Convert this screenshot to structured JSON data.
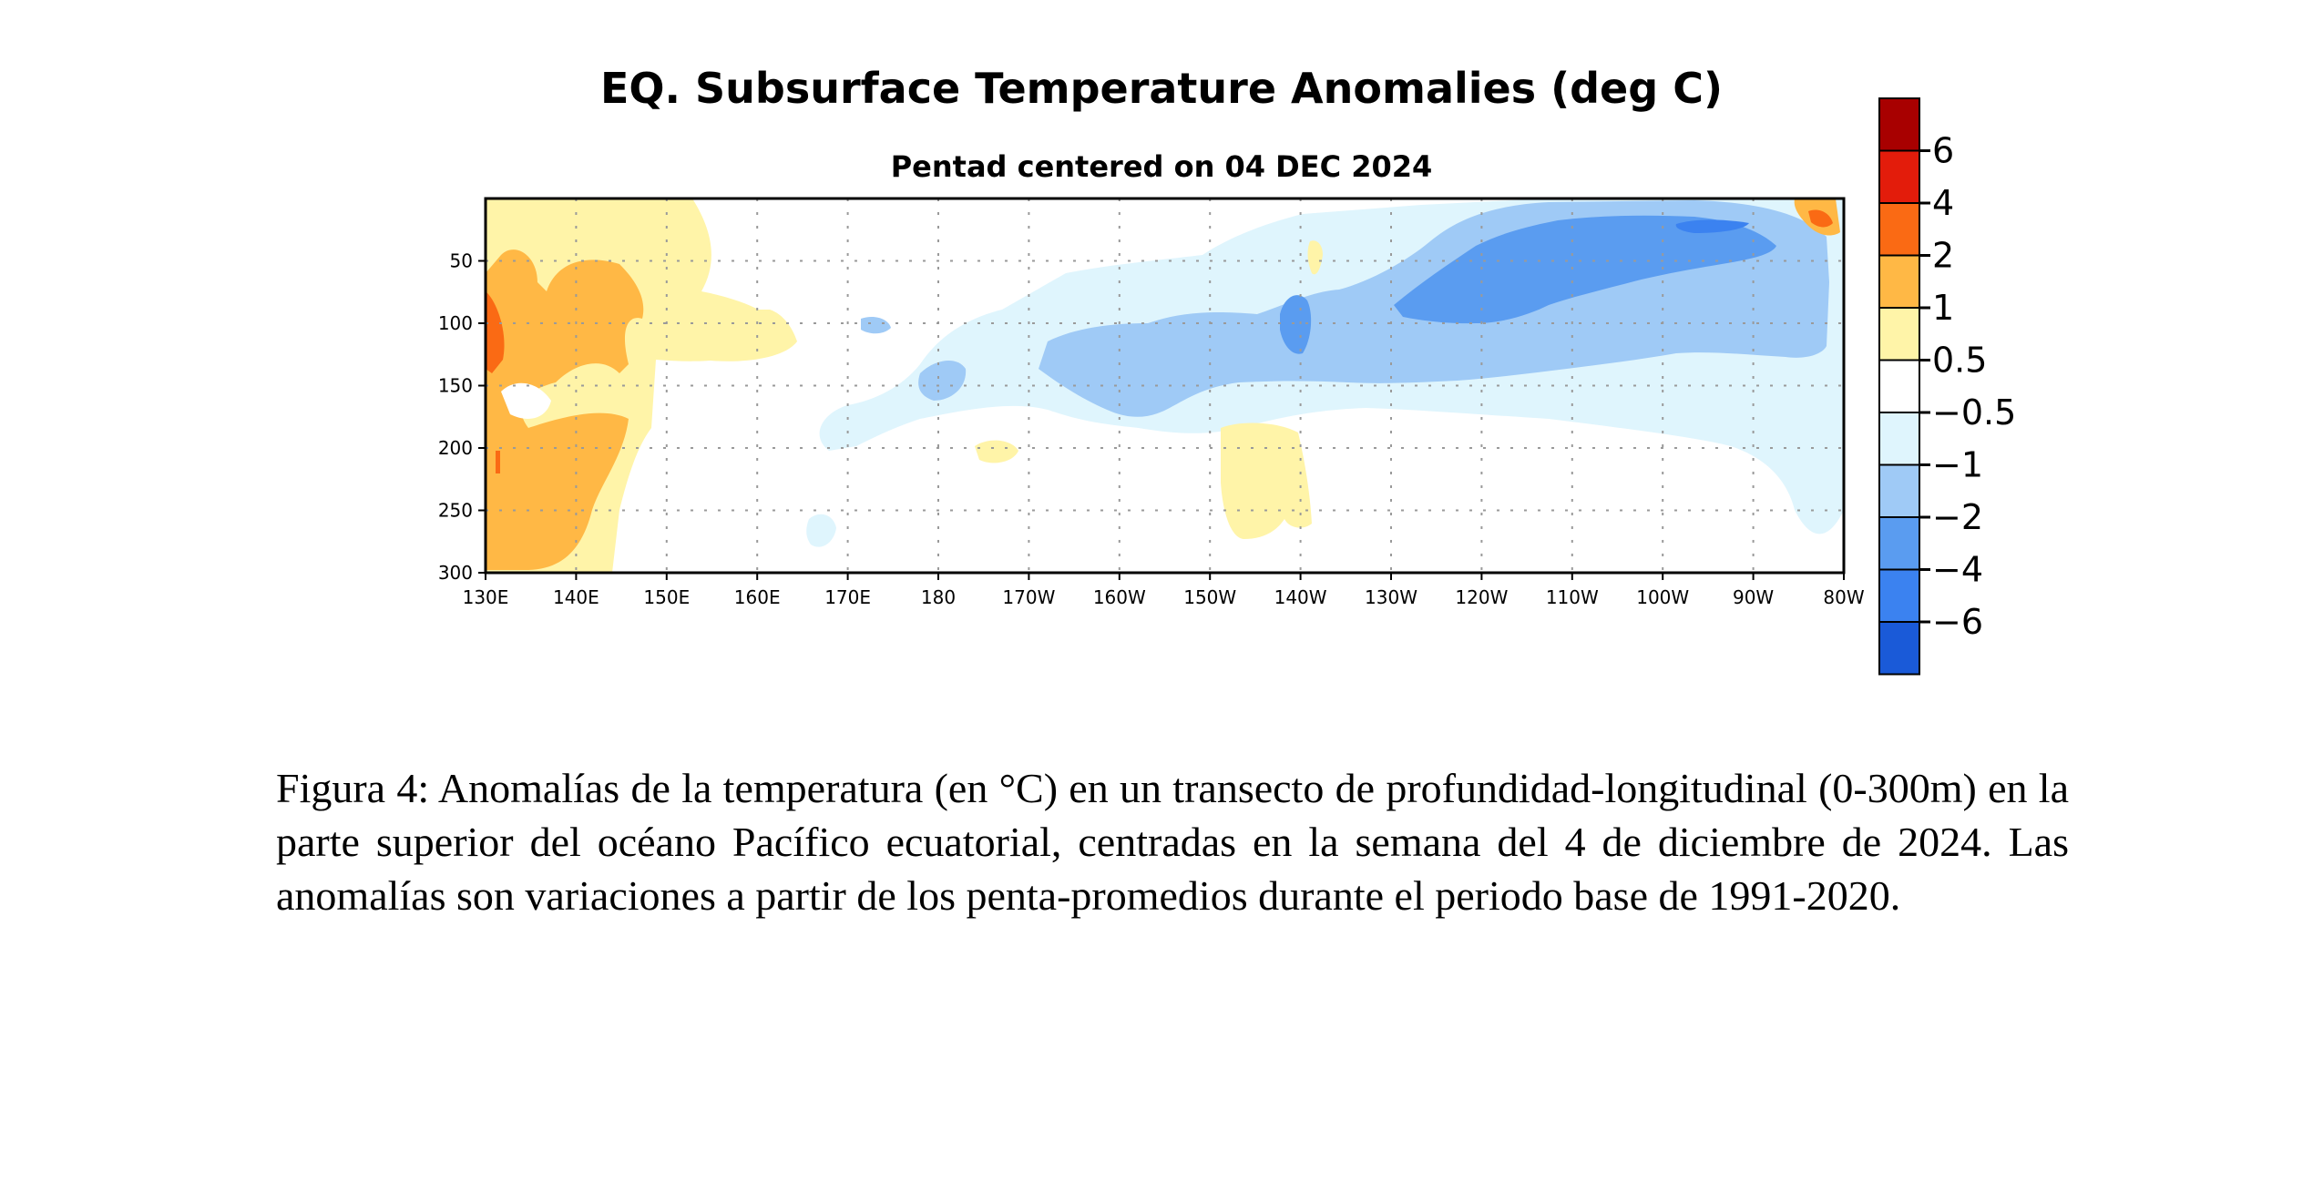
{
  "chart_data": {
    "type": "heatmap",
    "title": "EQ. Subsurface Temperature Anomalies (deg C)",
    "subtitle": "Pentad centered on 04 DEC 2024",
    "xlabel": "",
    "ylabel": "",
    "x_ticks": [
      "130E",
      "140E",
      "150E",
      "160E",
      "170E",
      "180",
      "170W",
      "160W",
      "150W",
      "140W",
      "130W",
      "120W",
      "110W",
      "100W",
      "90W",
      "80W"
    ],
    "y_ticks": [
      "50",
      "100",
      "150",
      "200",
      "250",
      "300"
    ],
    "xlim": [
      130,
      280
    ],
    "ylim": [
      300,
      0
    ],
    "grid": true,
    "legend_position": "right",
    "colorbar": {
      "labels": [
        "6",
        "4",
        "2",
        "1",
        "0.5",
        "−0.5",
        "−1",
        "−2",
        "−4",
        "−6"
      ],
      "levels": [
        -6,
        -4,
        -2,
        -1,
        -0.5,
        0.5,
        1,
        2,
        4,
        6
      ],
      "colors": [
        "#1a5ad8",
        "#3b82f0",
        "#5a9cf0",
        "#9fcaf6",
        "#dff5fd",
        "#ffffff",
        "#fff4a8",
        "#ffb845",
        "#fa6a14",
        "#e31c0b",
        "#a80000"
      ]
    },
    "regions": [
      {
        "label": "western warm anomaly (130E-150E, 0-300m)",
        "lon": [
          130,
          150
        ],
        "depth": [
          0,
          300
        ],
        "value": 1.5,
        "peak": 2.5
      },
      {
        "label": "shallow warm anomaly (150E-160E, 0-110m)",
        "lon": [
          150,
          160
        ],
        "depth": [
          0,
          110
        ],
        "value": 0.7
      },
      {
        "label": "cool anomaly band (170W-90W, 80-160m)",
        "lon": [
          190,
          270
        ],
        "depth": [
          80,
          160
        ],
        "value": -1.5
      },
      {
        "label": "strongest cool anomaly (125W-95W, 20-100m)",
        "lon": [
          235,
          265
        ],
        "depth": [
          20,
          100
        ],
        "value": -2.5
      },
      {
        "label": "deep warm patch (150W-140W, 200-260m)",
        "lon": [
          210,
          220
        ],
        "depth": [
          200,
          260
        ],
        "value": 0.7
      },
      {
        "label": "eastern surface warm patch (85W-80W, 0-30m)",
        "lon": [
          275,
          280
        ],
        "depth": [
          0,
          30
        ],
        "value": 3.0
      }
    ]
  },
  "caption": "Figura 4: Anomalías de la temperatura (en °C) en un transecto de profundidad-longitudinal (0-300m) en la parte superior del océano Pacífico ecuatorial, centradas en la semana del 4 de diciembre de 2024. Las anomalías son variaciones a partir de los penta-promedios durante el periodo base de 1991-2020."
}
